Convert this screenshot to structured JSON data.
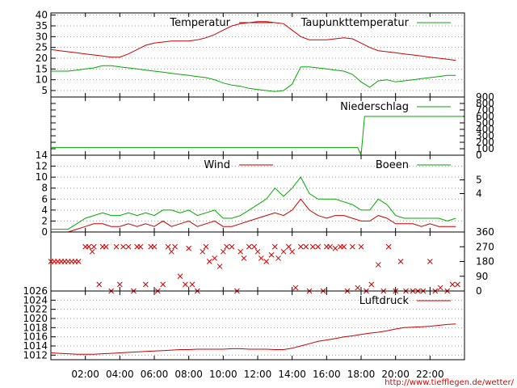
{
  "footer": {
    "credit": "http://www.tiefflegen.de/wetter/"
  },
  "colors": {
    "red": "#cc0000",
    "green": "#00aa00",
    "grid": "#999999"
  },
  "chart_data": [
    {
      "type": "line",
      "panel": "temperature",
      "ylim": [
        2,
        41
      ],
      "yticks": [
        "5",
        "10",
        "15",
        "20",
        "25",
        "30",
        "35",
        "40"
      ],
      "ytick_values": [
        5,
        10,
        15,
        20,
        25,
        30,
        35,
        40
      ],
      "legend_placement": "top-right",
      "grid": true,
      "series": [
        {
          "name": "Temperatur",
          "color": "red",
          "x": [
            0,
            0.5,
            1,
            1.5,
            2,
            2.5,
            3,
            3.5,
            4,
            4.5,
            5,
            5.5,
            6,
            6.5,
            7,
            7.5,
            8,
            8.5,
            9,
            9.5,
            10,
            10.5,
            11,
            11.5,
            12,
            12.5,
            13,
            13.5,
            14,
            14.5,
            15,
            15.5,
            16,
            16.5,
            17,
            17.5,
            18,
            18.5,
            19,
            19.5,
            20,
            20.5,
            21,
            21.5,
            22,
            22.5,
            23,
            23.5
          ],
          "values": [
            24,
            23.5,
            23,
            22.5,
            22,
            21.5,
            21,
            20.5,
            20.5,
            22,
            24,
            26,
            27,
            27.5,
            28,
            28,
            28,
            28.5,
            29.5,
            31,
            33,
            35,
            36,
            36.5,
            37,
            37,
            36.5,
            36,
            33,
            30,
            28.5,
            28.5,
            28.5,
            29,
            29.5,
            29,
            27,
            25,
            23.5,
            23,
            22.5,
            22,
            21.5,
            21,
            20.5,
            20,
            19.5,
            19
          ]
        },
        {
          "name": "Taupunkttemperatur",
          "color": "green",
          "x": [
            0,
            0.5,
            1,
            1.5,
            2,
            2.5,
            3,
            3.5,
            4,
            4.5,
            5,
            5.5,
            6,
            6.5,
            7,
            7.5,
            8,
            8.5,
            9,
            9.5,
            10,
            10.5,
            11,
            11.5,
            12,
            12.5,
            13,
            13.5,
            14,
            14.5,
            15,
            15.5,
            16,
            16.5,
            17,
            17.5,
            18,
            18.5,
            19,
            19.5,
            20,
            20.5,
            21,
            21.5,
            22,
            22.5,
            23,
            23.5
          ],
          "values": [
            14,
            14,
            14,
            14.5,
            15,
            15.5,
            16.5,
            16.5,
            16,
            15.5,
            15,
            14.5,
            14,
            13.5,
            13,
            12.5,
            12,
            11.5,
            11,
            10,
            8.5,
            7.5,
            7,
            6,
            5.5,
            5,
            4.5,
            5,
            8,
            16,
            16,
            15.5,
            15,
            14.5,
            14,
            12.5,
            9,
            6.5,
            9.5,
            10,
            9,
            9.5,
            10,
            10.5,
            11,
            11.5,
            12,
            12
          ]
        }
      ]
    },
    {
      "type": "line",
      "panel": "precipitation",
      "ylim": [
        0,
        900
      ],
      "yticks": [
        "0",
        "100",
        "200",
        "300",
        "400",
        "500",
        "600",
        "700",
        "800",
        "900"
      ],
      "ytick_values": [
        0,
        100,
        200,
        300,
        400,
        500,
        600,
        700,
        800,
        900
      ],
      "legend_placement": "top-right",
      "series": [
        {
          "name": "Niederschlag",
          "color": "green",
          "x": [
            0,
            17.8,
            18.0,
            18.2,
            23.9
          ],
          "values": [
            120,
            120,
            0,
            600,
            600
          ]
        }
      ]
    },
    {
      "type": "line",
      "panel": "wind",
      "ylim": [
        0,
        14
      ],
      "yticks": [
        "0",
        "2",
        "4",
        "6",
        "8",
        "10",
        "12",
        "14"
      ],
      "ytick_values": [
        0,
        2,
        4,
        6,
        8,
        10,
        12,
        14
      ],
      "yticks_right": [
        "4",
        "5"
      ],
      "yticks_right_values": [
        7,
        9.5
      ],
      "legend_placement": "top-right",
      "grid": true,
      "series": [
        {
          "name": "Wind",
          "color": "red",
          "x": [
            0,
            0.5,
            1,
            1.5,
            2,
            2.5,
            3,
            3.5,
            4,
            4.5,
            5,
            5.5,
            6,
            6.5,
            7,
            7.5,
            8,
            8.5,
            9,
            9.5,
            10,
            10.5,
            11,
            11.5,
            12,
            12.5,
            13,
            13.5,
            14,
            14.5,
            15,
            15.5,
            16,
            16.5,
            17,
            17.5,
            18,
            18.5,
            19,
            19.5,
            20,
            20.5,
            21,
            21.5,
            22,
            22.5,
            23,
            23.5
          ],
          "values": [
            0,
            0,
            0,
            0.5,
            1,
            1.5,
            1.5,
            1,
            1,
            1.5,
            1,
            1.5,
            1,
            2,
            1,
            1.5,
            2,
            1,
            1.5,
            2,
            1,
            1,
            1.5,
            2,
            2.5,
            3,
            3.5,
            3,
            4,
            6,
            4,
            3,
            2.5,
            3,
            3,
            2.5,
            2,
            2,
            3,
            2.5,
            1.5,
            1.5,
            1.5,
            1,
            1.5,
            1,
            1,
            1
          ]
        },
        {
          "name": "Boeen",
          "color": "green",
          "x": [
            0,
            0.5,
            1,
            1.5,
            2,
            2.5,
            3,
            3.5,
            4,
            4.5,
            5,
            5.5,
            6,
            6.5,
            7,
            7.5,
            8,
            8.5,
            9,
            9.5,
            10,
            10.5,
            11,
            11.5,
            12,
            12.5,
            13,
            13.5,
            14,
            14.5,
            15,
            15.5,
            16,
            16.5,
            17,
            17.5,
            18,
            18.5,
            19,
            19.5,
            20,
            20.5,
            21,
            21.5,
            22,
            22.5,
            23,
            23.5
          ],
          "values": [
            0.5,
            0.5,
            0.5,
            1.5,
            2.5,
            3,
            3.5,
            3,
            3,
            3.5,
            3,
            3.5,
            3,
            4,
            4,
            3.5,
            4,
            3,
            3.5,
            4,
            2.5,
            2.5,
            3,
            4,
            5,
            6,
            8,
            6.5,
            8,
            10,
            7,
            6,
            6,
            6,
            5.5,
            5,
            4,
            4,
            6,
            5,
            3,
            2.5,
            2.5,
            2.5,
            2.5,
            2.5,
            2,
            2.5
          ]
        }
      ]
    },
    {
      "type": "scatter",
      "panel": "wind_direction",
      "ylim": [
        0,
        360
      ],
      "yticks_right": [
        "0",
        "90",
        "180",
        "270",
        "360"
      ],
      "yticks_right_values": [
        0,
        90,
        180,
        270,
        360
      ],
      "series": [
        {
          "name": "",
          "color": "red",
          "marker": "x",
          "x": [
            0,
            0.2,
            0.4,
            0.6,
            0.8,
            1.0,
            1.2,
            1.4,
            1.6,
            2.0,
            2.2,
            2.4,
            2.5,
            2.8,
            3.0,
            3.2,
            3.5,
            3.8,
            4.0,
            4.2,
            4.5,
            4.8,
            5.0,
            5.2,
            5.5,
            5.8,
            6.0,
            6.2,
            6.5,
            6.8,
            7.0,
            7.2,
            7.5,
            7.8,
            8.0,
            8.2,
            8.5,
            8.8,
            9.0,
            9.2,
            9.5,
            9.8,
            10.0,
            10.2,
            10.5,
            10.8,
            11.0,
            11.2,
            11.5,
            11.8,
            12.0,
            12.2,
            12.5,
            12.8,
            13.0,
            13.2,
            13.5,
            13.8,
            14.0,
            14.2,
            14.5,
            14.8,
            15.0,
            15.2,
            15.5,
            15.8,
            16.0,
            16.2,
            16.5,
            16.8,
            17.0,
            17.2,
            17.5,
            17.8,
            18.0,
            18.3,
            18.6,
            19.0,
            19.3,
            19.6,
            20.0,
            20.3,
            20.6,
            21.0,
            21.3,
            21.6,
            22.0,
            22.3,
            22.6,
            23.0,
            23.3,
            23.6
          ],
          "values": [
            180,
            180,
            180,
            180,
            180,
            180,
            180,
            180,
            180,
            270,
            270,
            240,
            270,
            40,
            270,
            270,
            0,
            270,
            40,
            270,
            270,
            0,
            270,
            270,
            40,
            270,
            270,
            0,
            40,
            270,
            240,
            270,
            90,
            40,
            260,
            40,
            0,
            240,
            270,
            180,
            200,
            150,
            240,
            270,
            270,
            0,
            240,
            200,
            270,
            270,
            240,
            200,
            180,
            220,
            270,
            200,
            240,
            270,
            240,
            20,
            270,
            270,
            0,
            270,
            270,
            0,
            270,
            270,
            260,
            270,
            270,
            0,
            270,
            20,
            270,
            0,
            40,
            160,
            0,
            270,
            0,
            180,
            0,
            0,
            0,
            0,
            180,
            0,
            20,
            0,
            40,
            40
          ]
        }
      ]
    },
    {
      "type": "line",
      "panel": "pressure",
      "ylim": [
        1011,
        1026
      ],
      "yticks": [
        "1012",
        "1014",
        "1016",
        "1018",
        "1020",
        "1022",
        "1024",
        "1026"
      ],
      "ytick_values": [
        1012,
        1014,
        1016,
        1018,
        1020,
        1022,
        1024,
        1026
      ],
      "legend_placement": "top-right",
      "grid": true,
      "series": [
        {
          "name": "Luftdruck",
          "color": "red",
          "x": [
            0,
            0.5,
            1,
            1.5,
            2,
            2.5,
            3,
            3.5,
            4,
            4.5,
            5,
            5.5,
            6,
            6.5,
            7,
            7.5,
            8,
            8.5,
            9,
            9.5,
            10,
            10.5,
            11,
            11.5,
            12,
            12.5,
            13,
            13.5,
            14,
            14.5,
            15,
            15.5,
            16,
            16.5,
            17,
            17.5,
            18,
            18.5,
            19,
            19.5,
            20,
            20.5,
            21,
            21.5,
            22,
            22.5,
            23,
            23.5
          ],
          "values": [
            1012.5,
            1012.4,
            1012.3,
            1012.2,
            1012.2,
            1012.2,
            1012.3,
            1012.4,
            1012.5,
            1012.6,
            1012.7,
            1012.8,
            1012.9,
            1013,
            1013.1,
            1013.2,
            1013.2,
            1013.3,
            1013.3,
            1013.3,
            1013.3,
            1013.4,
            1013.4,
            1013.3,
            1013.3,
            1013.3,
            1013.2,
            1013.2,
            1013.5,
            1014,
            1014.5,
            1015,
            1015.3,
            1015.6,
            1016,
            1016.2,
            1016.5,
            1016.8,
            1017,
            1017.3,
            1017.7,
            1018,
            1018.1,
            1018.2,
            1018.3,
            1018.5,
            1018.7,
            1018.8
          ]
        }
      ]
    }
  ],
  "xaxis": {
    "tick_labels": [
      "02:00",
      "04:00",
      "06:00",
      "08:00",
      "10:00",
      "12:00",
      "14:00",
      "16:00",
      "18:00",
      "20:00",
      "22:00"
    ],
    "tick_values": [
      2,
      4,
      6,
      8,
      10,
      12,
      14,
      16,
      18,
      20,
      22
    ],
    "range": [
      0,
      24
    ]
  }
}
